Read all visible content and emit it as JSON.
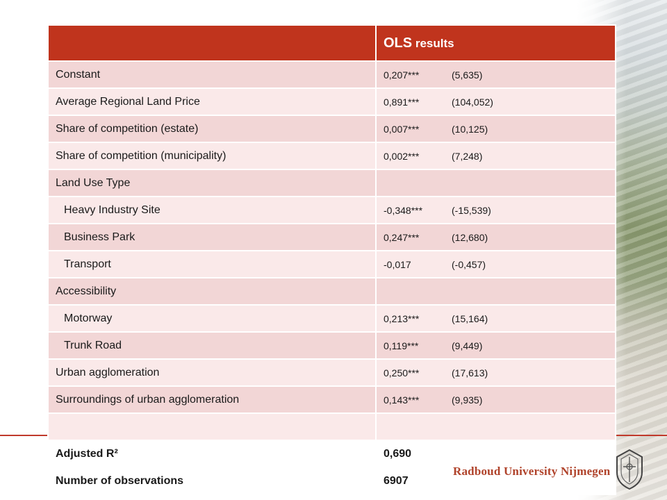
{
  "table": {
    "header": {
      "left": "",
      "title_main": "OLS",
      "title_rest": " results"
    },
    "rows": [
      {
        "label": "Constant",
        "indent": false,
        "coef": "0,207***",
        "tstat": "(5,635)"
      },
      {
        "label": "Average  Regional Land Price",
        "indent": false,
        "coef": "0,891***",
        "tstat": "(104,052)"
      },
      {
        "label": "Share of competition (estate)",
        "indent": false,
        "coef": "0,007***",
        "tstat": "(10,125)"
      },
      {
        "label": "Share of competition (municipality)",
        "indent": false,
        "coef": "0,002***",
        "tstat": "(7,248)"
      },
      {
        "label": "Land Use Type",
        "indent": false,
        "coef": "",
        "tstat": ""
      },
      {
        "label": "Heavy Industry Site",
        "indent": true,
        "coef": "-0,348***",
        "tstat": "(-15,539)"
      },
      {
        "label": "Business Park",
        "indent": true,
        "coef": "0,247***",
        "tstat": "(12,680)"
      },
      {
        "label": "Transport",
        "indent": true,
        "coef": "-0,017",
        "tstat": "(-0,457)"
      },
      {
        "label": "Accessibility",
        "indent": false,
        "coef": "",
        "tstat": ""
      },
      {
        "label": "Motorway",
        "indent": true,
        "coef": "0,213***",
        "tstat": "(15,164)"
      },
      {
        "label": "Trunk Road",
        "indent": true,
        "coef": "0,119***",
        "tstat": "(9,449)"
      },
      {
        "label": "Urban agglomeration",
        "indent": false,
        "coef": "0,250***",
        "tstat": "(17,613)"
      },
      {
        "label": "Surroundings of urban agglomeration",
        "indent": false,
        "coef": "0,143***",
        "tstat": "(9,935)"
      },
      {
        "label": "",
        "indent": false,
        "coef": "",
        "tstat": ""
      }
    ],
    "footer": [
      {
        "label": "Adjusted R²",
        "value": " 0,690"
      },
      {
        "label": "Number of observations",
        "value": "6907"
      }
    ]
  },
  "logo": {
    "text": "Radboud University Nijmegen",
    "emblem_icon": "university-seal-icon"
  },
  "colors": {
    "header_red": "#c0341d",
    "row_pink": "#f2d6d6",
    "row_light": "#fae9e9",
    "accent_line": "#c0392b",
    "logo_text": "#b0432b"
  }
}
